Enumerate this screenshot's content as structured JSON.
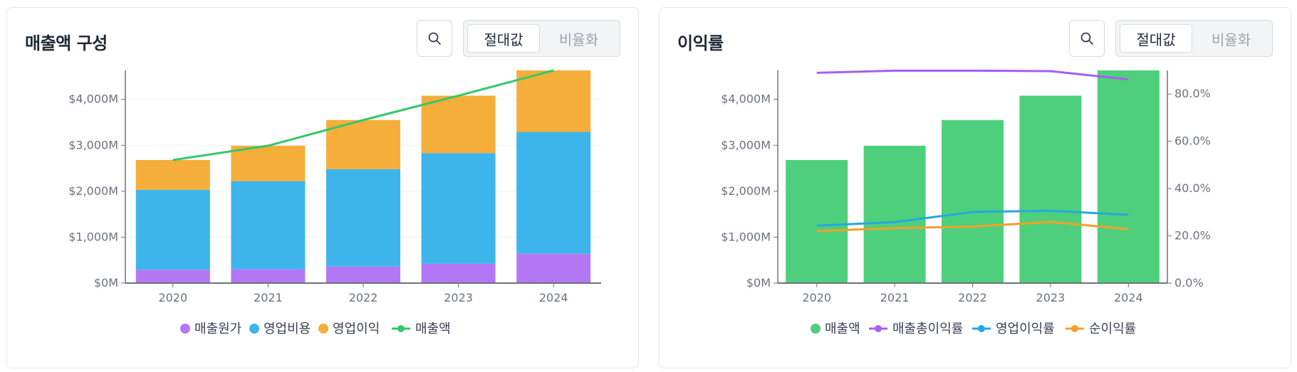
{
  "toggle": {
    "absolute": "절대값",
    "ratio": "비율화"
  },
  "icons": {
    "search": "search-icon"
  },
  "charts": [
    {
      "title": "매출액 구성",
      "chart_data": {
        "type": "bar",
        "stacked": true,
        "categories": [
          "2020",
          "2021",
          "2022",
          "2023",
          "2024"
        ],
        "series": [
          {
            "name": "매출원가",
            "type": "bar",
            "color": "#b377f5",
            "values": [
              290,
              300,
              360,
              420,
              640
            ]
          },
          {
            "name": "영업비용",
            "type": "bar",
            "color": "#3db5eb",
            "values": [
              1740,
              1920,
              2120,
              2410,
              2650
            ]
          },
          {
            "name": "영업이익",
            "type": "bar",
            "color": "#f5ae3a",
            "values": [
              650,
              770,
              1070,
              1250,
              1340
            ]
          },
          {
            "name": "매출액",
            "type": "line",
            "color": "#34c76a",
            "values": [
              2680,
              2990,
              3550,
              4080,
              4630
            ]
          }
        ],
        "ylim": [
          0,
          4630
        ],
        "yticks": [
          0,
          1000,
          2000,
          3000,
          4000
        ],
        "ytick_labels": [
          "$0M",
          "$1,000M",
          "$2,000M",
          "$3,000M",
          "$4,000M"
        ],
        "legend": "bottom"
      }
    },
    {
      "title": "이익률",
      "chart_data": {
        "type": "bar",
        "categories": [
          "2020",
          "2021",
          "2022",
          "2023",
          "2024"
        ],
        "series": [
          {
            "name": "매출액",
            "type": "bar",
            "axis": "left",
            "color": "#4ecf7c",
            "values": [
              2680,
              2990,
              3550,
              4080,
              4630
            ]
          },
          {
            "name": "매출총이익률",
            "type": "line",
            "axis": "right",
            "color": "#a75ef2",
            "values": [
              89.0,
              89.9,
              89.9,
              89.7,
              86.2
            ]
          },
          {
            "name": "영업이익률",
            "type": "line",
            "axis": "right",
            "color": "#24a8e0",
            "values": [
              24.3,
              25.8,
              30.1,
              30.6,
              28.9
            ]
          },
          {
            "name": "순이익률",
            "type": "line",
            "axis": "right",
            "color": "#f2a12a",
            "values": [
              22.0,
              23.3,
              23.9,
              25.9,
              22.8
            ]
          }
        ],
        "ylim": [
          0,
          4630
        ],
        "yticks": [
          0,
          1000,
          2000,
          3000,
          4000
        ],
        "ytick_labels": [
          "$0M",
          "$1,000M",
          "$2,000M",
          "$3,000M",
          "$4,000M"
        ],
        "y2lim": [
          0,
          90
        ],
        "y2ticks": [
          0,
          20,
          40,
          60,
          80
        ],
        "y2tick_labels": [
          "0.0%",
          "20.0%",
          "40.0%",
          "60.0%",
          "80.0%"
        ],
        "legend": "bottom"
      }
    }
  ]
}
